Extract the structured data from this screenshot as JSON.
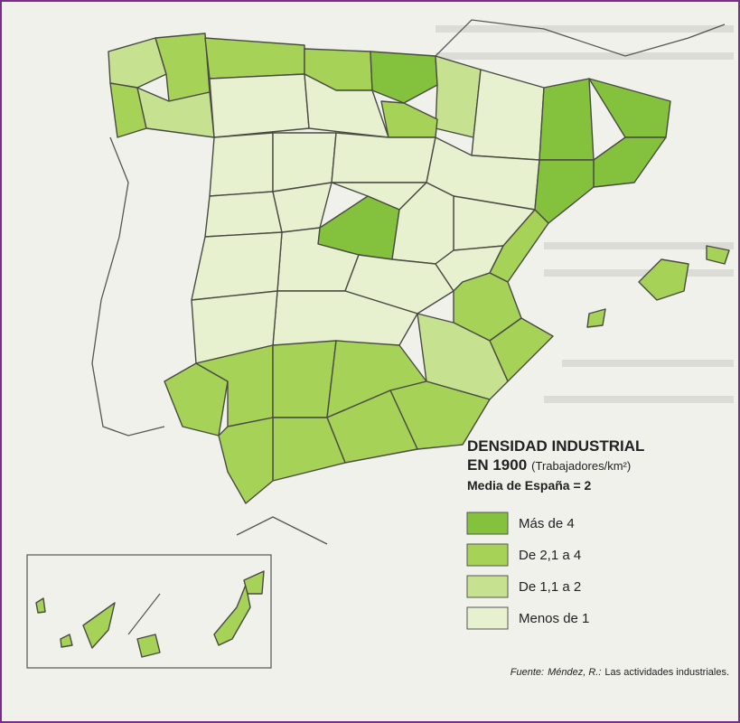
{
  "map": {
    "title": "DENSIDAD INDUSTRIAL",
    "subtitle": "EN 1900",
    "unit": "(Trabajadores/km²)",
    "average": "Media de España = 2",
    "legend": [
      {
        "label": "Más de 4",
        "color": "#84c23e"
      },
      {
        "label": "De 2,1 a 4",
        "color": "#a5d257"
      },
      {
        "label": "De 1,1 a 2",
        "color": "#c6e291"
      },
      {
        "label": "Menos de 1",
        "color": "#e7f1cf"
      }
    ],
    "source": {
      "prefix": "Fuente:",
      "author": "Méndez, R.:",
      "work": "Las actividades industriales."
    }
  }
}
